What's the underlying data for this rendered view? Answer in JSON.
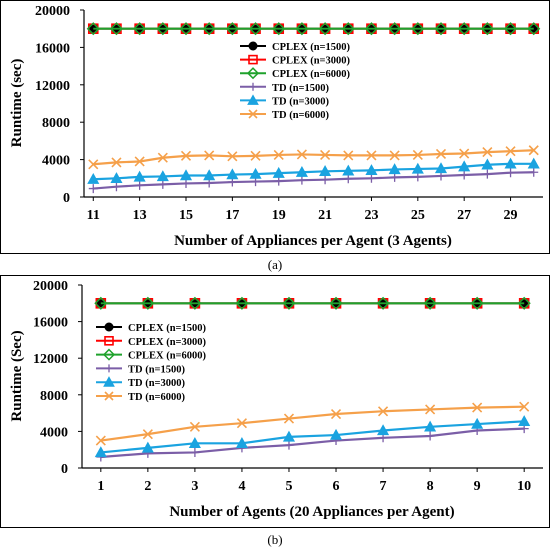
{
  "chart_data": [
    {
      "type": "line",
      "panel_label": "(a)",
      "xlabel": "Number of Appliances per Agent (3 Agents)",
      "ylabel": "Runtime (sec)",
      "x": [
        11,
        12,
        13,
        14,
        15,
        16,
        17,
        18,
        19,
        20,
        21,
        22,
        23,
        24,
        25,
        26,
        27,
        28,
        29,
        30
      ],
      "xticks": [
        11,
        13,
        15,
        17,
        19,
        21,
        23,
        25,
        27,
        29
      ],
      "xlim": [
        10.6,
        30.4
      ],
      "ylim": [
        0,
        20000
      ],
      "yticks": [
        0,
        4000,
        8000,
        12000,
        16000,
        20000
      ],
      "ytick_labels": [
        "0",
        "4000",
        "8000",
        "12000",
        "16000",
        "20000"
      ],
      "grid": false,
      "legend_position": "upper-center",
      "series": [
        {
          "name": "CPLEX (n=1500)",
          "color": "#000000",
          "marker": "circle",
          "values": [
            18000,
            18000,
            18000,
            18000,
            18000,
            18000,
            18000,
            18000,
            18000,
            18000,
            18000,
            18000,
            18000,
            18000,
            18000,
            18000,
            18000,
            18000,
            18000,
            18000
          ]
        },
        {
          "name": "CPLEX (n=3000)",
          "color": "#ff0000",
          "marker": "square",
          "values": [
            18000,
            18000,
            18000,
            18000,
            18000,
            18000,
            18000,
            18000,
            18000,
            18000,
            18000,
            18000,
            18000,
            18000,
            18000,
            18000,
            18000,
            18000,
            18000,
            18000
          ]
        },
        {
          "name": "CPLEX (n=6000)",
          "color": "#1fa22c",
          "marker": "diamond",
          "values": [
            18000,
            18000,
            18000,
            18000,
            18000,
            18000,
            18000,
            18000,
            18000,
            18000,
            18000,
            18000,
            18000,
            18000,
            18000,
            18000,
            18000,
            18000,
            18000,
            18000
          ]
        },
        {
          "name": "TD (n=1500)",
          "color": "#7b5ea7",
          "marker": "plus",
          "values": [
            900,
            1100,
            1250,
            1350,
            1450,
            1500,
            1600,
            1650,
            1700,
            1800,
            1850,
            1950,
            2000,
            2100,
            2150,
            2250,
            2350,
            2450,
            2600,
            2650
          ]
        },
        {
          "name": "TD (n=3000)",
          "color": "#1aa3e0",
          "marker": "triangle",
          "values": [
            1900,
            2000,
            2150,
            2200,
            2300,
            2300,
            2400,
            2450,
            2550,
            2650,
            2750,
            2800,
            2850,
            2950,
            3000,
            3050,
            3250,
            3450,
            3550,
            3550
          ]
        },
        {
          "name": "TD (n=6000)",
          "color": "#f5a04a",
          "marker": "x",
          "values": [
            3500,
            3700,
            3800,
            4200,
            4400,
            4450,
            4350,
            4400,
            4500,
            4550,
            4500,
            4450,
            4450,
            4450,
            4500,
            4600,
            4650,
            4800,
            4900,
            5000
          ]
        }
      ]
    },
    {
      "type": "line",
      "panel_label": "(b)",
      "xlabel": "Number of Agents (20 Appliances per Agent)",
      "ylabel": "Runtime (Sec)",
      "x": [
        1,
        2,
        3,
        4,
        5,
        6,
        7,
        8,
        9,
        10
      ],
      "xticks": [
        1,
        2,
        3,
        4,
        5,
        6,
        7,
        8,
        9,
        10
      ],
      "xlim": [
        0.6,
        10.4
      ],
      "ylim": [
        0,
        20000
      ],
      "yticks": [
        0,
        4000,
        8000,
        12000,
        16000,
        20000
      ],
      "ytick_labels": [
        "0",
        "4000",
        "8000",
        "12000",
        "16000",
        "20000"
      ],
      "grid": false,
      "legend_position": "left",
      "series": [
        {
          "name": "CPLEX (n=1500)",
          "color": "#000000",
          "marker": "circle",
          "values": [
            18000,
            18000,
            18000,
            18000,
            18000,
            18000,
            18000,
            18000,
            18000,
            18000
          ]
        },
        {
          "name": "CPLEX (n=3000)",
          "color": "#ff0000",
          "marker": "square",
          "values": [
            18000,
            18000,
            18000,
            18000,
            18000,
            18000,
            18000,
            18000,
            18000,
            18000
          ]
        },
        {
          "name": "CPLEX (n=6000)",
          "color": "#1fa22c",
          "marker": "diamond",
          "values": [
            18000,
            18000,
            18000,
            18000,
            18000,
            18000,
            18000,
            18000,
            18000,
            18000
          ]
        },
        {
          "name": "TD (n=1500)",
          "color": "#7b5ea7",
          "marker": "plus",
          "values": [
            1200,
            1600,
            1700,
            2200,
            2500,
            3000,
            3300,
            3500,
            4100,
            4300
          ]
        },
        {
          "name": "TD (n=3000)",
          "color": "#1aa3e0",
          "marker": "triangle",
          "values": [
            1700,
            2200,
            2700,
            2700,
            3400,
            3600,
            4100,
            4500,
            4800,
            5100
          ]
        },
        {
          "name": "TD (n=6000)",
          "color": "#f5a04a",
          "marker": "x",
          "values": [
            3000,
            3700,
            4500,
            4900,
            5400,
            5900,
            6200,
            6400,
            6600,
            6700
          ]
        }
      ]
    }
  ]
}
